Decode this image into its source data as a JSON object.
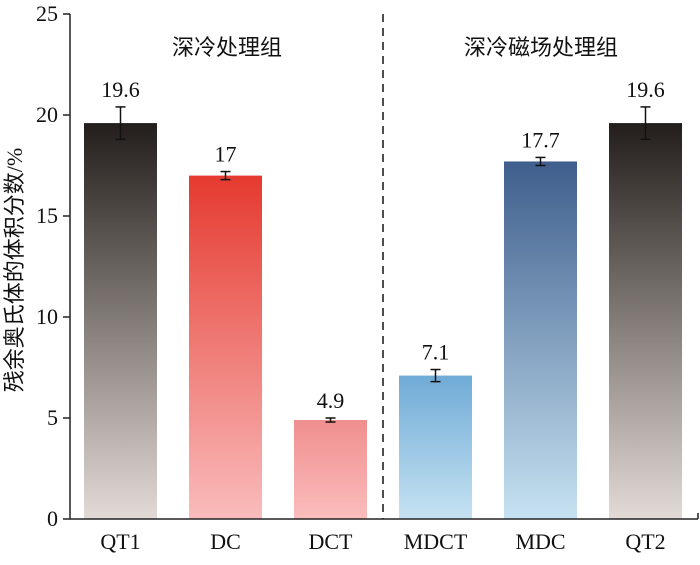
{
  "chart_data": {
    "type": "bar",
    "title": "",
    "xlabel": "",
    "ylabel": "残余奥氏体的体积分数/%",
    "ylim": [
      0,
      25
    ],
    "yticks": [
      0,
      5,
      10,
      15,
      20,
      25
    ],
    "grid": false,
    "categories": [
      "QT1",
      "DC",
      "DCT",
      "MDCT",
      "MDC",
      "QT2"
    ],
    "values": [
      19.6,
      17,
      4.9,
      7.1,
      17.7,
      19.6
    ],
    "value_labels": [
      "19.6",
      "17",
      "4.9",
      "7.1",
      "17.7",
      "19.6"
    ],
    "errors": [
      0.8,
      0.2,
      0.1,
      0.3,
      0.2,
      0.8
    ],
    "bar_colors": [
      [
        "#231e1b",
        "#e2dad6"
      ],
      [
        "#e53a2f",
        "#f9bcbc"
      ],
      [
        "#f08e8e",
        "#fbbdbd"
      ],
      [
        "#6fabd6",
        "#c6e2f2"
      ],
      [
        "#3f5e8c",
        "#c6e2f2"
      ],
      [
        "#231e1b",
        "#e2dad6"
      ]
    ],
    "groups": [
      {
        "label": "深冷处理组"
      },
      {
        "label": "深冷磁场处理组"
      }
    ]
  }
}
